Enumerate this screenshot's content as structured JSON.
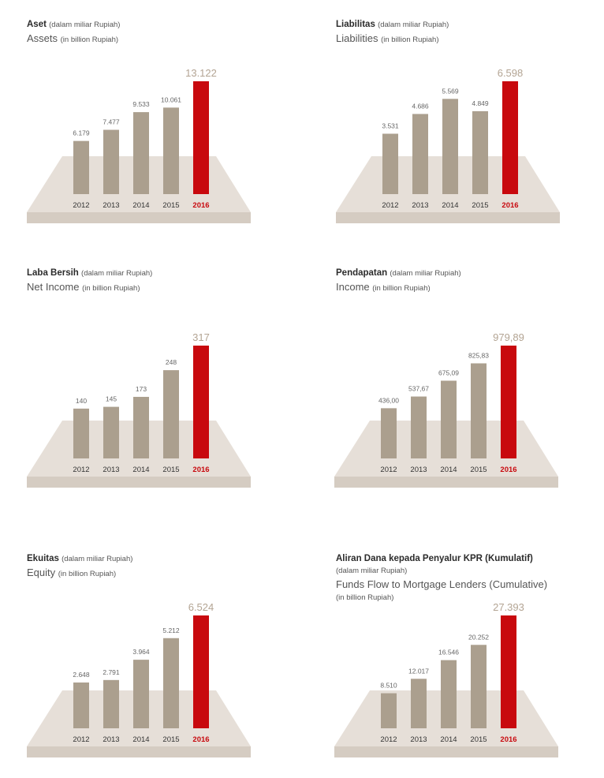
{
  "colors": {
    "bar": "#ab9f8e",
    "highlight": "#c8090e",
    "platform_top": "#e6dfd8",
    "platform_front": "#d5ccc2"
  },
  "chart_data": [
    {
      "type": "bar",
      "title": "Aset",
      "title_note": "(dalam miliar Rupiah)",
      "subtitle": "Assets",
      "subtitle_note": "(in billion Rupiah)",
      "categories": [
        "2012",
        "2013",
        "2014",
        "2015",
        "2016"
      ],
      "values": [
        6179,
        7477,
        9533,
        10061,
        13122
      ],
      "labels": [
        "6.179",
        "7.477",
        "9.533",
        "10.061",
        "13.122"
      ],
      "highlight": "2016"
    },
    {
      "type": "bar",
      "title": "Liabilitas",
      "title_note": "(dalam miliar Rupiah)",
      "subtitle": "Liabilities",
      "subtitle_note": "(in billion Rupiah)",
      "categories": [
        "2012",
        "2013",
        "2014",
        "2015",
        "2016"
      ],
      "values": [
        3531,
        4686,
        5569,
        4849,
        6598
      ],
      "labels": [
        "3.531",
        "4.686",
        "5.569",
        "4.849",
        "6.598"
      ],
      "highlight": "2016"
    },
    {
      "type": "bar",
      "title": "Laba Bersih",
      "title_note": "(dalam miliar Rupiah)",
      "subtitle": "Net Income",
      "subtitle_note": "(in billion Rupiah)",
      "categories": [
        "2012",
        "2013",
        "2014",
        "2015",
        "2016"
      ],
      "values": [
        140,
        145,
        173,
        248,
        317
      ],
      "labels": [
        "140",
        "145",
        "173",
        "248",
        "317"
      ],
      "highlight": "2016"
    },
    {
      "type": "bar",
      "title": "Pendapatan",
      "title_note": "(dalam miliar Rupiah)",
      "subtitle": "Income",
      "subtitle_note": "(in billion Rupiah)",
      "categories": [
        "2012",
        "2013",
        "2014",
        "2015",
        "2016"
      ],
      "values": [
        436.0,
        537.67,
        675.09,
        825.83,
        979.89
      ],
      "labels": [
        "436,00",
        "537,67",
        "675,09",
        "825,83",
        "979,89"
      ],
      "highlight": "2016"
    },
    {
      "type": "bar",
      "title": "Ekuitas",
      "title_note": "(dalam miliar Rupiah)",
      "subtitle": "Equity",
      "subtitle_note": "(in billion Rupiah)",
      "categories": [
        "2012",
        "2013",
        "2014",
        "2015",
        "2016"
      ],
      "values": [
        2648,
        2791,
        3964,
        5212,
        6524
      ],
      "labels": [
        "2.648",
        "2.791",
        "3.964",
        "5.212",
        "6.524"
      ],
      "highlight": "2016"
    },
    {
      "type": "bar",
      "title": "Aliran Dana kepada Penyalur KPR (Kumulatif)",
      "title_note": "(dalam miliar Rupiah)",
      "subtitle": "Funds Flow to Mortgage Lenders (Cumulative)",
      "subtitle_note": "(in billion Rupiah)",
      "categories": [
        "2012",
        "2013",
        "2014",
        "2015",
        "2016"
      ],
      "values": [
        8510,
        12017,
        16546,
        20252,
        27393
      ],
      "labels": [
        "8.510",
        "12.017",
        "16.546",
        "20.252",
        "27.393"
      ],
      "highlight": "2016"
    }
  ]
}
